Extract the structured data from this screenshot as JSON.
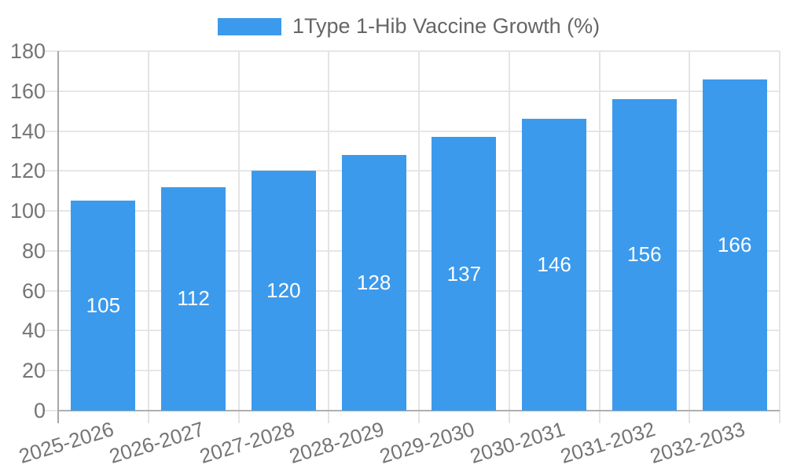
{
  "legend": {
    "label": "1Type 1-Hib Vaccine Growth (%)"
  },
  "chart_data": {
    "type": "bar",
    "title": "1Type 1-Hib Vaccine Growth (%)",
    "categories": [
      "2025-2026",
      "2026-2027",
      "2027-2028",
      "2028-2029",
      "2029-2030",
      "2030-2031",
      "2031-2032",
      "2032-2033"
    ],
    "values": [
      105,
      112,
      120,
      128,
      137,
      146,
      156,
      166
    ],
    "xlabel": "",
    "ylabel": "",
    "ylim": [
      0,
      180
    ],
    "yticks": [
      0,
      20,
      40,
      60,
      80,
      100,
      120,
      140,
      160,
      180
    ],
    "grid": true,
    "legend_position": "top-center",
    "bar_color": "#3c9aec",
    "value_label_color": "#ffffff",
    "axis_label_color": "#757575",
    "grid_color": "#e6e6e6"
  }
}
